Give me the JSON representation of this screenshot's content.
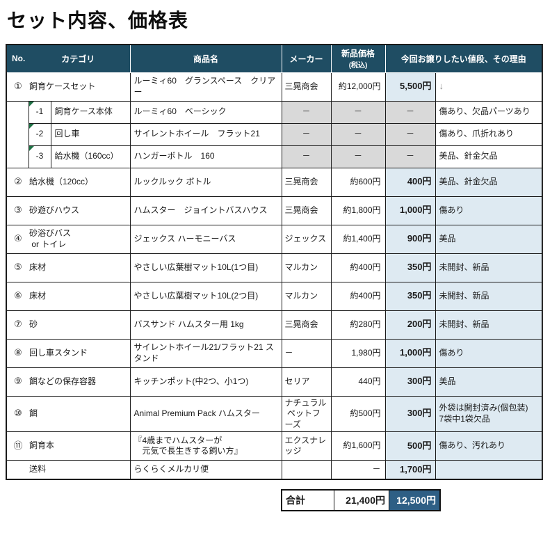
{
  "title": "セット内容、価格表",
  "colors": {
    "header_bg": "#1f4d63",
    "total_highlight_bg": "#2e5f85",
    "offer_column_bg": "#deeaf2",
    "disabled_cell_bg": "#d9d9d9",
    "corner_marker_green": "#1e7145",
    "arrow_gray": "#8c8c8c"
  },
  "icons": {
    "sub_row_corner_marker": "green-corner-triangle-icon",
    "row1_reason_arrow": "down-arrow-icon"
  },
  "header": {
    "no": "No.",
    "category": "カテゴリ",
    "product": "商品名",
    "maker": "メーカー",
    "new_price": "新品価格",
    "new_price_note": "(税込)",
    "offer": "今回お譲りしたい値段、その理由"
  },
  "rows": [
    {
      "type": "main",
      "no": "①",
      "category": "飼育ケースセット",
      "product": "ルーミィ60　グランスペース　クリアー",
      "maker": "三晃商会",
      "new_price": "約12,000円",
      "offer_price": "5,500円",
      "reason": "↓",
      "reason_plain": true,
      "reason_muted": true
    },
    {
      "type": "sub",
      "sub_no": "-1",
      "category": "飼育ケース本体",
      "product": "ルーミィ60　ベーシック",
      "maker": "－",
      "new_price": "－",
      "offer_price": "－",
      "reason": "傷あり、欠品パーツあり"
    },
    {
      "type": "sub",
      "sub_no": "-2",
      "category": "回し車",
      "product": "サイレントホイール　フラット21",
      "maker": "－",
      "new_price": "－",
      "offer_price": "－",
      "reason": "傷あり、爪折れあり"
    },
    {
      "type": "sub",
      "sub_no": "-3",
      "category": "給水機（160cc）",
      "product": "ハンガーボトル　160",
      "maker": "－",
      "new_price": "－",
      "offer_price": "－",
      "reason": "美品、針金欠品"
    },
    {
      "type": "main",
      "no": "②",
      "category": "給水機（120cc）",
      "product": "ルックルック ボトル",
      "maker": "三晃商会",
      "new_price": "約600円",
      "offer_price": "400円",
      "reason": "美品、針金欠品"
    },
    {
      "type": "main",
      "no": "③",
      "category": "砂遊びハウス",
      "product": "ハムスター　ジョイントバスハウス",
      "maker": "三晃商会",
      "new_price": "約1,800円",
      "offer_price": "1,000円",
      "reason": "傷あり"
    },
    {
      "type": "main",
      "no": "④",
      "category": "砂浴びバス\n or トイレ",
      "product": "ジェックス ハーモニーバス",
      "maker": "ジェックス",
      "new_price": "約1,400円",
      "offer_price": "900円",
      "reason": "美品"
    },
    {
      "type": "main",
      "no": "⑤",
      "category": "床材",
      "product": "やさしい広葉樹マット10L(1つ目)",
      "maker": "マルカン",
      "new_price": "約400円",
      "offer_price": "350円",
      "reason": "未開封、新品"
    },
    {
      "type": "main",
      "no": "⑥",
      "category": "床材",
      "product": "やさしい広葉樹マット10L(2つ目)",
      "maker": "マルカン",
      "new_price": "約400円",
      "offer_price": "350円",
      "reason": "未開封、新品"
    },
    {
      "type": "main",
      "no": "⑦",
      "category": "砂",
      "product": "バスサンド ハムスター用 1kg",
      "maker": "三晃商会",
      "new_price": "約280円",
      "offer_price": "200円",
      "reason": "未開封、新品"
    },
    {
      "type": "main",
      "no": "⑧",
      "category": "回し車スタンド",
      "product": "サイレントホイール21/フラット21 スタンド",
      "maker": "－",
      "new_price": "1,980円",
      "offer_price": "1,000円",
      "reason": "傷あり"
    },
    {
      "type": "main",
      "no": "⑨",
      "category": "餌などの保存容器",
      "product": "キッチンポット(中2つ、小1つ)",
      "maker": "セリア",
      "new_price": "440円",
      "offer_price": "300円",
      "reason": "美品"
    },
    {
      "type": "main",
      "no": "⑩",
      "category": "餌",
      "product": "Animal Premium Pack ハムスター",
      "maker": "ナチュラル\n ペットフーズ",
      "new_price": "約500円",
      "offer_price": "300円",
      "reason": "外袋は開封済み(個包装)\n7袋中1袋欠品"
    },
    {
      "type": "main",
      "no": "⑪",
      "category": "飼育本",
      "product": "『4歳までハムスターが\n　元気で長生きする飼い方』",
      "maker": "エクスナレッジ",
      "new_price": "約1,600円",
      "offer_price": "500円",
      "reason": "傷あり、汚れあり"
    },
    {
      "type": "shipping",
      "no": "",
      "category": "送料",
      "product": "らくらくメルカリ便",
      "maker": "",
      "new_price": "－",
      "offer_price": "1,700円",
      "reason": ""
    }
  ],
  "total": {
    "label": "合計",
    "new_price": "21,400円",
    "offer_price": "12,500円"
  }
}
